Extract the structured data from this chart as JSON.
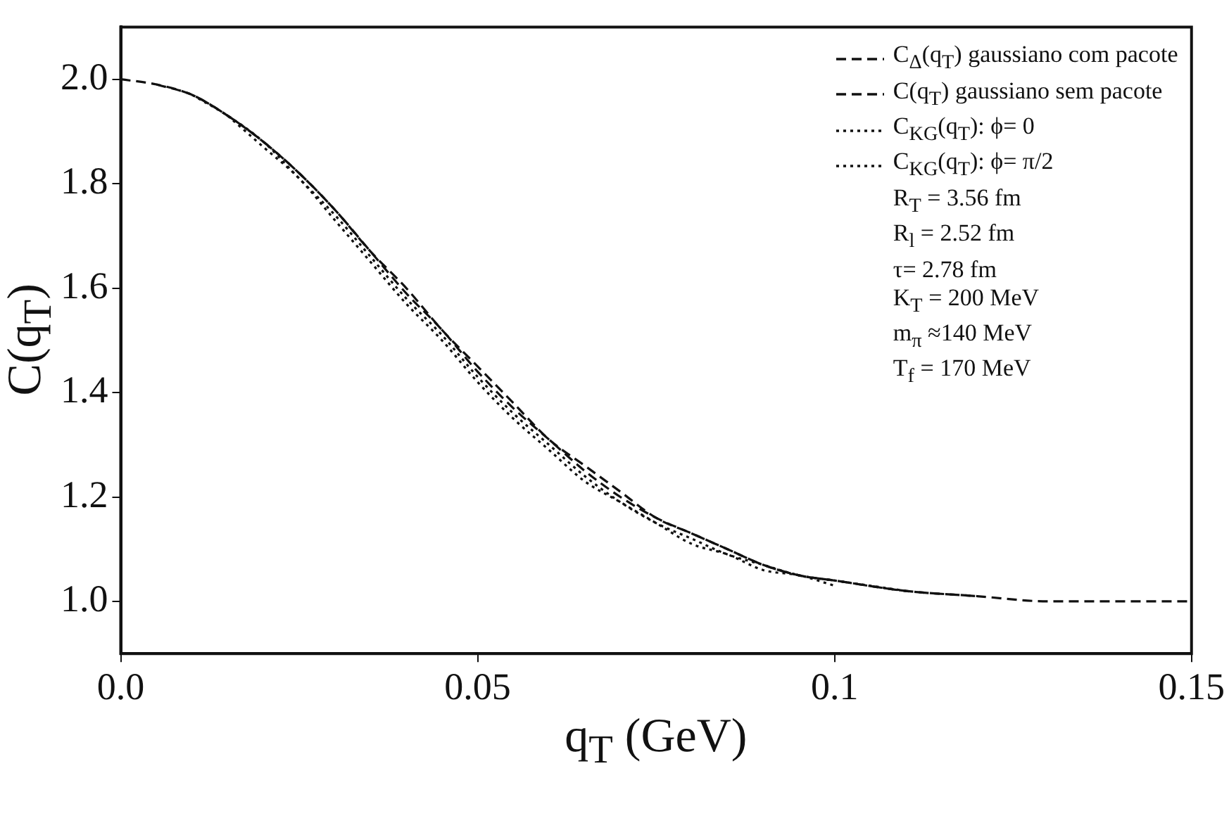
{
  "chart_data": {
    "type": "line",
    "xlabel": "q$_{T}$ (GeV)",
    "ylabel": "C(q$_{T}$)",
    "x": [
      0,
      0.005,
      0.01,
      0.015,
      0.02,
      0.025,
      0.03,
      0.035,
      0.04,
      0.045,
      0.05,
      0.055,
      0.06,
      0.065,
      0.07,
      0.075,
      0.08,
      0.085,
      0.09,
      0.095,
      0.1,
      0.11,
      0.12,
      0.13,
      0.14,
      0.15
    ],
    "series": [
      {
        "name": "C$_{Δ}$(q$_{T}$) gaussiano com pacote",
        "color": "#111111",
        "line_style": "dashed",
        "values": [
          2.0,
          1.99,
          1.97,
          1.93,
          1.88,
          1.82,
          1.75,
          1.67,
          1.6,
          1.52,
          1.45,
          1.38,
          1.31,
          1.26,
          1.21,
          1.16,
          1.13,
          1.1,
          1.07,
          1.05,
          1.04,
          1.02,
          1.01,
          1.0,
          1.0,
          1.0
        ]
      },
      {
        "name": "C(q$_{T}$) gaussiano sem pacote",
        "color": "#111111",
        "line_style": "dashed",
        "values": [
          null,
          1.99,
          1.97,
          1.93,
          1.88,
          1.82,
          1.75,
          1.67,
          1.59,
          1.52,
          1.44,
          1.37,
          1.31,
          1.25,
          1.2,
          1.16,
          1.13,
          1.1,
          1.07,
          1.05,
          1.04,
          1.02,
          1.01,
          null,
          null,
          null
        ]
      },
      {
        "name": "C$_{KG}$(q$_{T}$): ϕ= 0",
        "color": "#111111",
        "line_style": "dotted",
        "values": [
          null,
          null,
          1.97,
          1.93,
          1.88,
          1.81,
          1.74,
          1.66,
          1.58,
          1.51,
          1.43,
          1.36,
          1.3,
          1.24,
          1.19,
          1.15,
          1.12,
          1.09,
          1.07,
          1.05,
          1.04,
          1.02,
          null,
          null,
          null,
          null
        ]
      },
      {
        "name": "C$_{KG}$(q$_{T}$): ϕ= π/2",
        "color": "#111111",
        "line_style": "dotted",
        "values": [
          null,
          null,
          null,
          1.93,
          1.87,
          1.81,
          1.73,
          1.65,
          1.57,
          1.5,
          1.42,
          1.35,
          1.29,
          1.23,
          1.19,
          1.15,
          1.11,
          1.09,
          1.06,
          1.05,
          1.03,
          null,
          null,
          null,
          null,
          null
        ]
      }
    ],
    "xlim": [
      0,
      0.15
    ],
    "xticks": [
      {
        "value": 0,
        "label": "0.0"
      },
      0.05,
      0.1,
      0.15
    ],
    "ylim": [
      0.9,
      2.1
    ],
    "yticks": [
      {
        "value": 1,
        "label": "1.0"
      },
      1.2,
      1.4,
      1.6,
      1.8,
      {
        "value": 2,
        "label": "2.0"
      }
    ],
    "grid": false,
    "legend": "top right",
    "marker": "none",
    "annotations": [
      "R$_{T}$ = 3.56 fm",
      "R$_{l}$ = 2.52 fm",
      "τ= 2.78 fm",
      "K$_{T}$ = 200 MeV",
      "m$_{π}$ ≈140 MeV",
      "T$_{f}$ = 170 MeV"
    ]
  }
}
